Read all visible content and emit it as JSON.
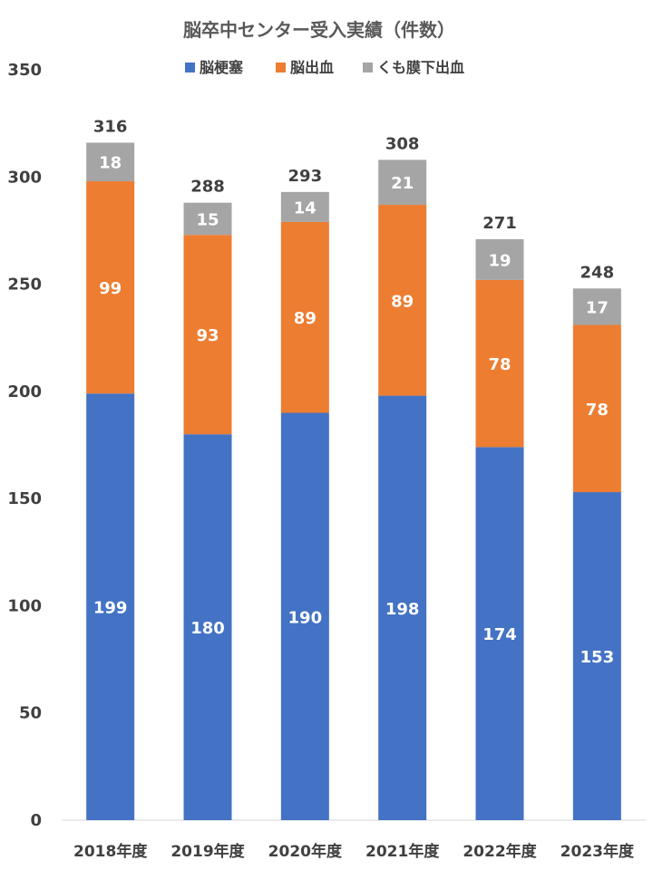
{
  "chart_data": {
    "type": "bar",
    "stacked": true,
    "title": "脳卒中センター受入実績（件数）",
    "categories": [
      "2018年度",
      "2019年度",
      "2020年度",
      "2021年度",
      "2022年度",
      "2023年度"
    ],
    "series": [
      {
        "name": "脳梗塞",
        "color": "#4472C4",
        "values": [
          199,
          180,
          190,
          198,
          174,
          153
        ]
      },
      {
        "name": "脳出血",
        "color": "#ED7D31",
        "values": [
          99,
          93,
          89,
          89,
          78,
          78
        ]
      },
      {
        "name": "くも膜下出血",
        "color": "#A5A5A5",
        "values": [
          18,
          15,
          14,
          21,
          19,
          17
        ]
      }
    ],
    "totals": [
      316,
      288,
      293,
      308,
      271,
      248
    ],
    "ylim": [
      0,
      350
    ],
    "yticks": [
      0,
      50,
      100,
      150,
      200,
      250,
      300,
      350
    ],
    "xlabel": "",
    "ylabel": "",
    "grid": false,
    "legend_position": "top"
  }
}
